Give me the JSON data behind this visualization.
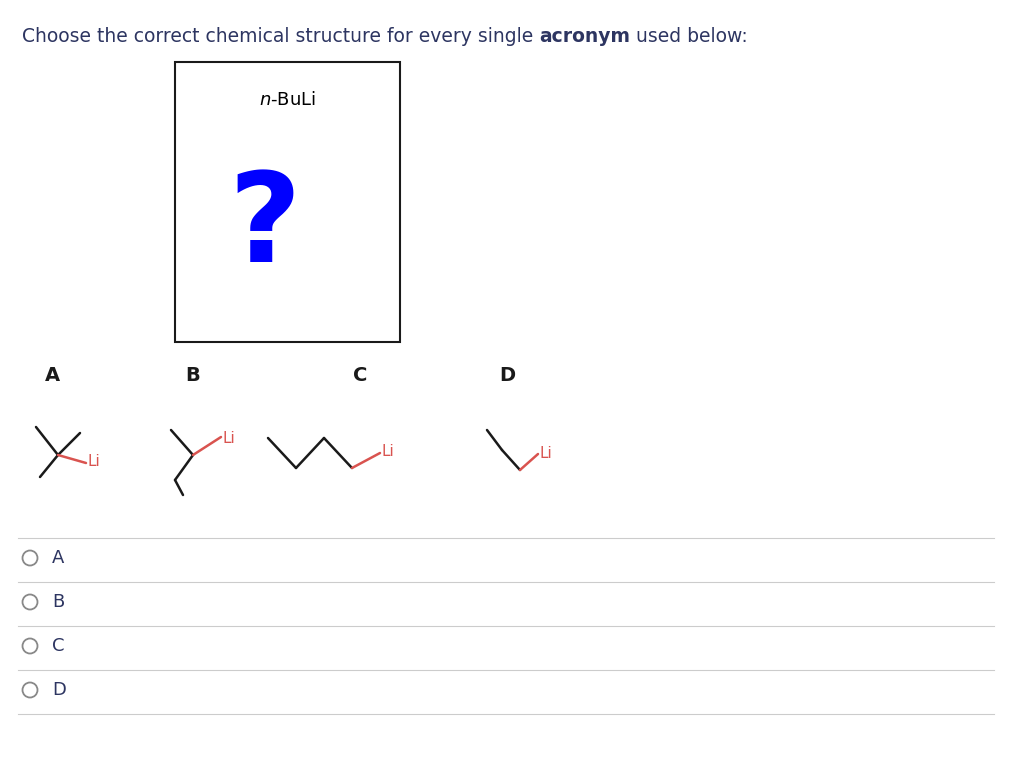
{
  "title_part1": "Choose the correct chemical structure for every single ",
  "title_bold": "acronym",
  "title_part2": " used below:",
  "box_label": "$\\itm$-BuLi",
  "question_mark": "?",
  "question_color": "#0000FF",
  "box_color": "#1a1a1a",
  "li_color": "#D9534F",
  "line_color": "#1a1a1a",
  "bg_color": "#FFFFFF",
  "option_labels": [
    "A",
    "B",
    "C",
    "D"
  ],
  "radio_options": [
    "A",
    "B",
    "C",
    "D"
  ],
  "title_color": "#2d3561",
  "label_color": "#1a1a1a"
}
